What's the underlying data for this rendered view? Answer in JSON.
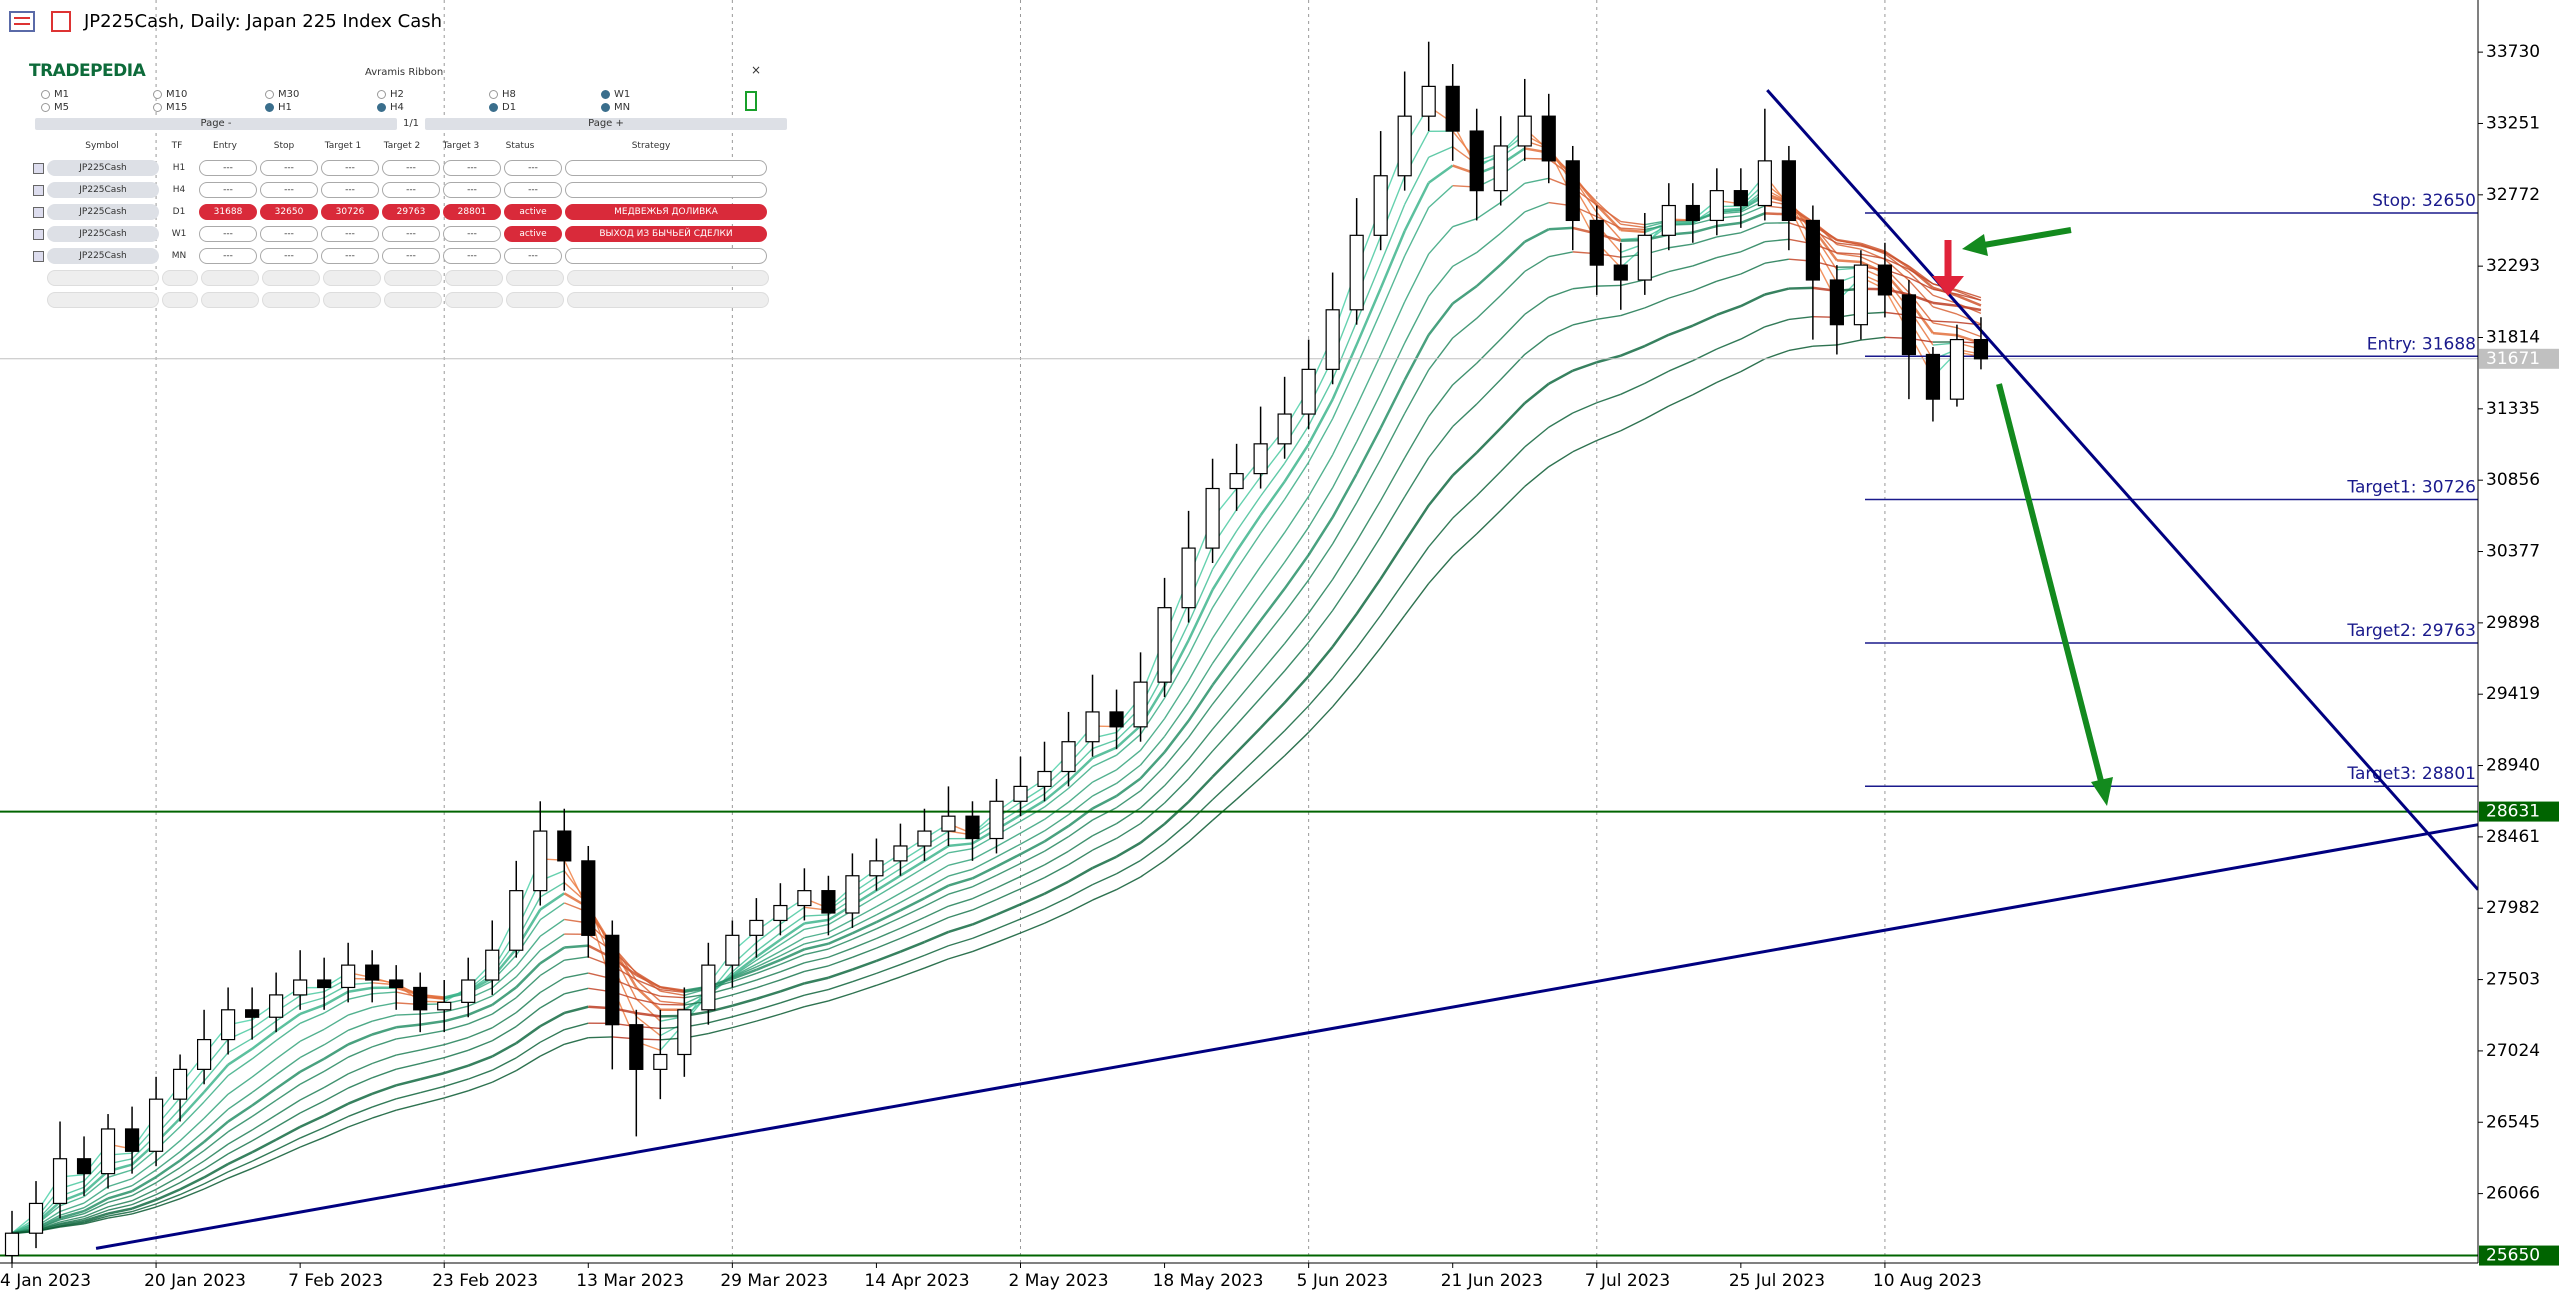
{
  "chart_data": {
    "type": "candlestick",
    "title": "JP225Cash, Daily:  Japan 225 Index Cash",
    "ohlc": [
      [
        25650,
        25950,
        25600,
        25800
      ],
      [
        25800,
        26150,
        25700,
        26000
      ],
      [
        26000,
        26550,
        25900,
        26300
      ],
      [
        26300,
        26450,
        26050,
        26200
      ],
      [
        26200,
        26600,
        26100,
        26500
      ],
      [
        26500,
        26650,
        26200,
        26350
      ],
      [
        26350,
        26850,
        26250,
        26700
      ],
      [
        26700,
        27000,
        26550,
        26900
      ],
      [
        26900,
        27300,
        26800,
        27100
      ],
      [
        27100,
        27450,
        27000,
        27300
      ],
      [
        27300,
        27450,
        27100,
        27250
      ],
      [
        27250,
        27550,
        27150,
        27400
      ],
      [
        27400,
        27700,
        27300,
        27500
      ],
      [
        27500,
        27650,
        27300,
        27450
      ],
      [
        27450,
        27750,
        27350,
        27600
      ],
      [
        27600,
        27700,
        27350,
        27500
      ],
      [
        27500,
        27600,
        27300,
        27450
      ],
      [
        27450,
        27550,
        27150,
        27300
      ],
      [
        27300,
        27500,
        27150,
        27350
      ],
      [
        27350,
        27650,
        27250,
        27500
      ],
      [
        27500,
        27900,
        27400,
        27700
      ],
      [
        27700,
        28300,
        27650,
        28100
      ],
      [
        28100,
        28700,
        28000,
        28500
      ],
      [
        28500,
        28650,
        28100,
        28300
      ],
      [
        28300,
        28400,
        27650,
        27800
      ],
      [
        27800,
        27900,
        26900,
        27200
      ],
      [
        27200,
        27300,
        26450,
        26900
      ],
      [
        26900,
        27300,
        26700,
        27000
      ],
      [
        27000,
        27450,
        26850,
        27300
      ],
      [
        27300,
        27750,
        27200,
        27600
      ],
      [
        27600,
        27900,
        27450,
        27800
      ],
      [
        27800,
        28050,
        27650,
        27900
      ],
      [
        27900,
        28150,
        27800,
        28000
      ],
      [
        28000,
        28250,
        27900,
        28100
      ],
      [
        28100,
        28200,
        27800,
        27950
      ],
      [
        27950,
        28350,
        27850,
        28200
      ],
      [
        28200,
        28450,
        28100,
        28300
      ],
      [
        28300,
        28550,
        28200,
        28400
      ],
      [
        28400,
        28650,
        28300,
        28500
      ],
      [
        28500,
        28800,
        28400,
        28600
      ],
      [
        28600,
        28700,
        28300,
        28450
      ],
      [
        28450,
        28850,
        28350,
        28700
      ],
      [
        28700,
        29000,
        28600,
        28800
      ],
      [
        28800,
        29100,
        28700,
        28900
      ],
      [
        28900,
        29300,
        28800,
        29100
      ],
      [
        29100,
        29550,
        29000,
        29300
      ],
      [
        29300,
        29450,
        29050,
        29200
      ],
      [
        29200,
        29700,
        29100,
        29500
      ],
      [
        29500,
        30200,
        29400,
        30000
      ],
      [
        30000,
        30650,
        29900,
        30400
      ],
      [
        30400,
        31000,
        30300,
        30800
      ],
      [
        30800,
        31100,
        30650,
        30900
      ],
      [
        30900,
        31350,
        30800,
        31100
      ],
      [
        31100,
        31550,
        31000,
        31300
      ],
      [
        31300,
        31800,
        31200,
        31600
      ],
      [
        31600,
        32250,
        31500,
        32000
      ],
      [
        32000,
        32750,
        31900,
        32500
      ],
      [
        32500,
        33200,
        32400,
        32900
      ],
      [
        32900,
        33600,
        32800,
        33300
      ],
      [
        33300,
        33800,
        33200,
        33500
      ],
      [
        33500,
        33650,
        33000,
        33200
      ],
      [
        33200,
        33350,
        32600,
        32800
      ],
      [
        32800,
        33300,
        32700,
        33100
      ],
      [
        33100,
        33550,
        33000,
        33300
      ],
      [
        33300,
        33450,
        32850,
        33000
      ],
      [
        33000,
        33100,
        32400,
        32600
      ],
      [
        32600,
        32700,
        32100,
        32300
      ],
      [
        32300,
        32450,
        32000,
        32200
      ],
      [
        32200,
        32650,
        32100,
        32500
      ],
      [
        32500,
        32850,
        32400,
        32700
      ],
      [
        32700,
        32850,
        32450,
        32600
      ],
      [
        32600,
        32950,
        32500,
        32800
      ],
      [
        32800,
        32950,
        32550,
        32700
      ],
      [
        32700,
        33350,
        32600,
        33000
      ],
      [
        33000,
        33100,
        32400,
        32600
      ],
      [
        32600,
        32700,
        31800,
        32200
      ],
      [
        32200,
        32300,
        31700,
        31900
      ],
      [
        31900,
        32400,
        31800,
        32300
      ],
      [
        32300,
        32450,
        31950,
        32100
      ],
      [
        32100,
        32200,
        31400,
        31700
      ],
      [
        31700,
        31750,
        31250,
        31400
      ],
      [
        31400,
        31900,
        31350,
        31800
      ],
      [
        31800,
        31950,
        31600,
        31671
      ]
    ],
    "xlim": [
      -0.5,
      102.7
    ],
    "xticks": [
      {
        "value": 0,
        "label": "4 Jan 2023"
      },
      {
        "value": 6,
        "label": "20 Jan 2023"
      },
      {
        "value": 12,
        "label": "7 Feb 2023"
      },
      {
        "value": 18,
        "label": "23 Feb 2023"
      },
      {
        "value": 24,
        "label": "13 Mar 2023"
      },
      {
        "value": 30,
        "label": "29 Mar 2023"
      },
      {
        "value": 36,
        "label": "14 Apr 2023"
      },
      {
        "value": 42,
        "label": "2 May 2023"
      },
      {
        "value": 48,
        "label": "18 May 2023"
      },
      {
        "value": 54,
        "label": "5 Jun 2023"
      },
      {
        "value": 60,
        "label": "21 Jun 2023"
      },
      {
        "value": 66,
        "label": "7 Jul 2023"
      },
      {
        "value": 72,
        "label": "25 Jul 2023"
      },
      {
        "value": 78,
        "label": "10 Aug 2023"
      }
    ],
    "ylim": [
      25600,
      34080
    ],
    "yticks": [
      33730,
      33251,
      32772,
      32293,
      31814,
      31335,
      30856,
      30377,
      29898,
      29419,
      28940,
      28461,
      27982,
      27503,
      27024,
      26545,
      26066
    ],
    "grid": true,
    "levels": [
      {
        "label": "Stop: 32650",
        "value": 32650
      },
      {
        "label": "Entry: 31688",
        "value": 31688
      },
      {
        "label": "Target1: 30726",
        "value": 30726
      },
      {
        "label": "Target2: 29763",
        "value": 29763
      },
      {
        "label": "Target3: 28801",
        "value": 28801
      }
    ],
    "level_color": "#1a1a8c",
    "hlines": [
      {
        "value": 28631,
        "color": "#006400"
      },
      {
        "value": 25650,
        "color": "#006400"
      }
    ],
    "current_price": 31671,
    "trendlines": [
      {
        "color": "#000080",
        "points": [
          [
            3.5,
            25698
          ],
          [
            102.7,
            28543
          ]
        ]
      },
      {
        "color": "#000080",
        "points": [
          [
            73.1,
            33475
          ],
          [
            102.7,
            28107
          ]
        ]
      }
    ],
    "panel": {
      "logo": "TRADEPEDIA",
      "title": "Avramis Ribbon",
      "close": "×",
      "timeframes": [
        {
          "label": "M1",
          "checked": false
        },
        {
          "label": "M5",
          "checked": false
        },
        {
          "label": "M10",
          "checked": false
        },
        {
          "label": "M15",
          "checked": false
        },
        {
          "label": "M30",
          "checked": false
        },
        {
          "label": "H1",
          "checked": true
        },
        {
          "label": "H2",
          "checked": false
        },
        {
          "label": "H4",
          "checked": true
        },
        {
          "label": "H8",
          "checked": false
        },
        {
          "label": "D1",
          "checked": true
        },
        {
          "label": "W1",
          "checked": true
        },
        {
          "label": "MN",
          "checked": true
        }
      ],
      "page_prev": "Page -",
      "page_num": "1/1",
      "page_next": "Page +",
      "columns": [
        "Symbol",
        "TF",
        "Entry",
        "Stop",
        "Target 1",
        "Target 2",
        "Target 3",
        "Status",
        "Strategy"
      ],
      "rows": [
        {
          "cells": [
            "JP225Cash",
            "H1",
            "---",
            "---",
            "---",
            "---",
            "---",
            "---"
          ],
          "red": []
        },
        {
          "cells": [
            "JP225Cash",
            "H4",
            "---",
            "---",
            "---",
            "---",
            "---",
            "---"
          ],
          "red": []
        },
        {
          "cells": [
            "JP225Cash",
            "D1",
            "31688",
            "32650",
            "30726",
            "29763",
            "28801",
            "active",
            "МЕДВЕЖЬЯ ДОЛИВКА"
          ],
          "red": [
            2,
            3,
            4,
            5,
            6,
            7,
            8
          ]
        },
        {
          "cells": [
            "JP225Cash",
            "W1",
            "---",
            "---",
            "---",
            "---",
            "---",
            "active",
            "ВЫХОД ИЗ БЫЧЬЕЙ СДЕЛКИ"
          ],
          "red": [
            7,
            8
          ]
        },
        {
          "cells": [
            "JP225Cash",
            "MN",
            "---",
            "---",
            "---",
            "---",
            "---",
            "---"
          ],
          "red": []
        }
      ]
    }
  }
}
